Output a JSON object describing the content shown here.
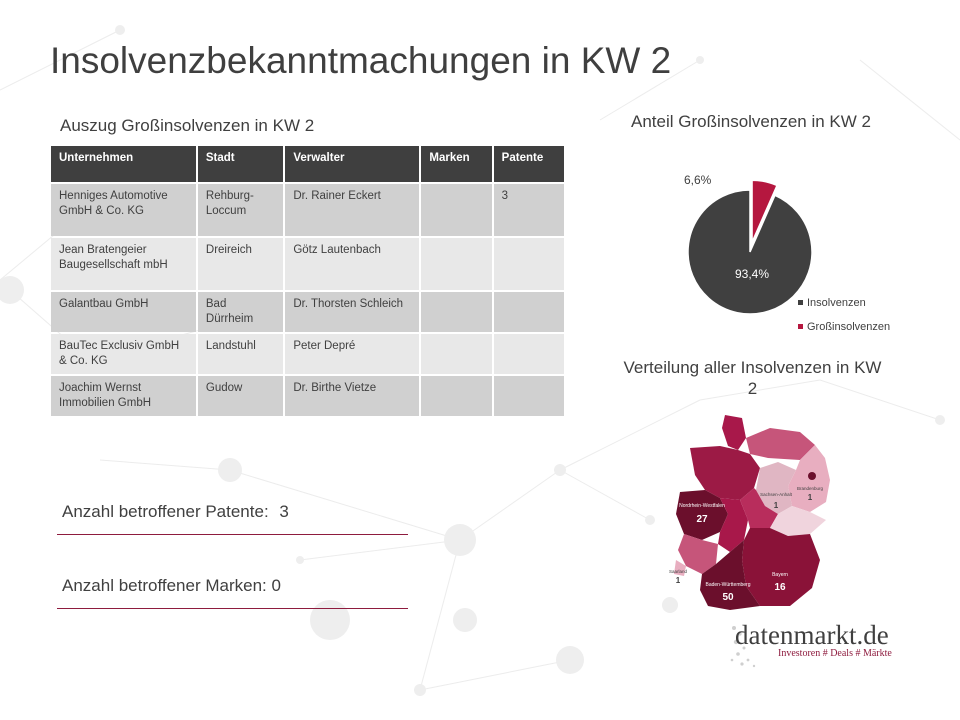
{
  "title": "Insolvenzbekanntmachungen in KW 2",
  "table": {
    "caption": "Auszug Großinsolvenzen in KW 2",
    "headers": [
      "Unternehmen",
      "Stadt",
      "Verwalter",
      "Marken",
      "Patente"
    ],
    "rows": [
      [
        "Henniges Automotive GmbH & Co. KG",
        "Rehburg-Loccum",
        "Dr. Rainer Eckert",
        "",
        "3"
      ],
      [
        "Jean Bratengeier Baugesellschaft mbH",
        "Dreireich",
        "Götz Lautenbach",
        "",
        ""
      ],
      [
        "Galantbau GmbH",
        "Bad Dürrheim",
        "Dr. Thorsten Schleich",
        "",
        ""
      ],
      [
        "BauTec Exclusiv GmbH & Co. KG",
        "Landstuhl",
        "Peter Depré",
        "",
        ""
      ],
      [
        "Joachim Wernst Immobilien GmbH",
        "Gudow",
        "Dr. Birthe Vietze",
        "",
        ""
      ]
    ]
  },
  "stats": {
    "patents_label": "Anzahl betroffener Patente:",
    "patents_value": "3",
    "marks_label": "Anzahl betroffener Marken:",
    "marks_value": "0"
  },
  "chart_data": [
    {
      "type": "pie",
      "title": "Anteil Großinsolvenzen in KW 2",
      "slices": [
        {
          "name": "Insolvenzen",
          "value": 93.4,
          "label": "93,4%",
          "color": "#404040"
        },
        {
          "name": "Großinsolvenzen",
          "value": 6.6,
          "label": "6,6%",
          "color": "#b5173f"
        }
      ],
      "legend_position": "bottom-right"
    },
    {
      "type": "choropleth-map",
      "title": "Verteilung aller Insolvenzen in KW 2",
      "regions": [
        {
          "name": "Nordrhein-Westfalen",
          "value": 27
        },
        {
          "name": "Baden-Württemberg",
          "value": 50
        },
        {
          "name": "Bayern",
          "value": 16
        },
        {
          "name": "Sachsen-Anhalt",
          "value": 1
        },
        {
          "name": "Brandenburg",
          "value": 1
        },
        {
          "name": "Saarland",
          "value": 1
        }
      ]
    }
  ],
  "logo": {
    "name": "datenmarkt.de",
    "tagline": "Investoren # Deals # Märkte"
  },
  "colors": {
    "accent": "#8e1b3e",
    "dark": "#404040"
  }
}
